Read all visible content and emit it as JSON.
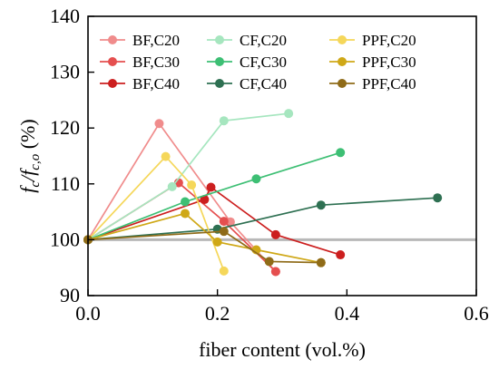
{
  "chart_data": {
    "type": "line",
    "title": "",
    "xlabel": "fiber content (vol.%)",
    "ylabel": {
      "main": "f",
      "sub1": "c",
      "mid": "/f",
      "sub2": "c,o",
      "unit": " (%)"
    },
    "xlim": [
      0.0,
      0.6
    ],
    "ylim": [
      90,
      140
    ],
    "xticks": [
      "0.0",
      "0.2",
      "0.4",
      "0.6"
    ],
    "yticks": [
      "90",
      "100",
      "110",
      "120",
      "130",
      "140"
    ],
    "reference_line": {
      "y": 100,
      "color": "#b8b8b8"
    },
    "legend_position": "top",
    "series": [
      {
        "name": "BF,C20",
        "color": "#f08c8c",
        "points": [
          [
            0.0,
            100.0
          ],
          [
            0.11,
            120.8
          ],
          [
            0.22,
            103.2
          ],
          [
            0.29,
            94.3
          ]
        ]
      },
      {
        "name": "BF,C30",
        "color": "#e54f4f",
        "points": [
          [
            0.0,
            100.0
          ],
          [
            0.14,
            110.2
          ],
          [
            0.21,
            103.3
          ],
          [
            0.29,
            94.3
          ]
        ]
      },
      {
        "name": "BF,C40",
        "color": "#cc1f1f",
        "points": [
          [
            0.0,
            100.0
          ],
          [
            0.18,
            107.2
          ],
          [
            0.19,
            109.4
          ],
          [
            0.29,
            100.9
          ],
          [
            0.39,
            97.3
          ]
        ]
      },
      {
        "name": "CF,C20",
        "color": "#a6e6bf",
        "points": [
          [
            0.0,
            100.0
          ],
          [
            0.13,
            109.5
          ],
          [
            0.21,
            121.3
          ],
          [
            0.31,
            122.6
          ]
        ]
      },
      {
        "name": "CF,C30",
        "color": "#3dbf74",
        "points": [
          [
            0.0,
            100.0
          ],
          [
            0.15,
            106.8
          ],
          [
            0.26,
            110.9
          ],
          [
            0.39,
            115.6
          ]
        ]
      },
      {
        "name": "CF,C40",
        "color": "#2e7052",
        "points": [
          [
            0.0,
            100.0
          ],
          [
            0.2,
            101.9
          ],
          [
            0.36,
            106.2
          ],
          [
            0.54,
            107.5
          ]
        ]
      },
      {
        "name": "PPF,C20",
        "color": "#f5d75a",
        "points": [
          [
            0.0,
            100.0
          ],
          [
            0.12,
            114.9
          ],
          [
            0.16,
            109.8
          ],
          [
            0.21,
            94.4
          ]
        ]
      },
      {
        "name": "PPF,C30",
        "color": "#cfa817",
        "points": [
          [
            0.0,
            100.0
          ],
          [
            0.15,
            104.7
          ],
          [
            0.2,
            99.6
          ],
          [
            0.26,
            98.2
          ],
          [
            0.36,
            95.9
          ]
        ]
      },
      {
        "name": "PPF,C40",
        "color": "#8f6b18",
        "points": [
          [
            0.0,
            100.0
          ],
          [
            0.21,
            101.5
          ],
          [
            0.28,
            96.1
          ],
          [
            0.36,
            95.9
          ]
        ]
      }
    ]
  }
}
